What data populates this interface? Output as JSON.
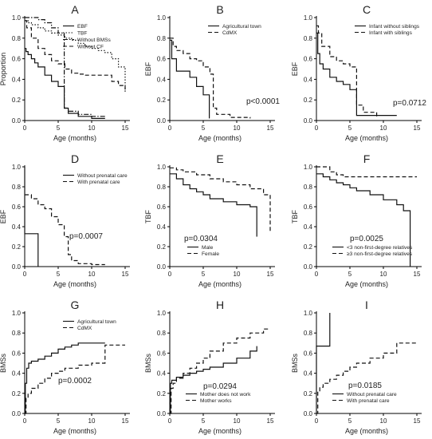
{
  "chart_data": [
    {
      "type": "line",
      "panel": "A",
      "xlabel": "Age (months)",
      "ylabel": "Proportion",
      "xlim": [
        0,
        15
      ],
      "ylim": [
        0,
        1.0
      ],
      "xticks": [
        0,
        5,
        10,
        15
      ],
      "yticks": [
        0,
        0.2,
        0.4,
        0.6,
        0.8,
        1.0
      ],
      "legend": "top-right",
      "pvalue": "",
      "series": [
        {
          "name": "EBF",
          "style": "solid",
          "x": [
            0,
            0.2,
            0.5,
            1,
            1.5,
            2,
            3,
            4,
            5,
            5.9,
            5.9,
            6.5,
            8,
            10,
            12
          ],
          "y": [
            0.7,
            0.67,
            0.64,
            0.6,
            0.56,
            0.52,
            0.44,
            0.38,
            0.33,
            0.3,
            0.12,
            0.07,
            0.04,
            0.02,
            0.02
          ]
        },
        {
          "name": "TBF",
          "style": "dotted",
          "x": [
            0,
            0.5,
            1,
            2,
            3,
            4,
            5,
            6,
            7,
            8,
            9,
            10,
            11,
            12,
            13,
            14,
            15
          ],
          "y": [
            0.97,
            0.95,
            0.93,
            0.9,
            0.87,
            0.85,
            0.83,
            0.8,
            0.78,
            0.75,
            0.72,
            0.7,
            0.68,
            0.66,
            0.6,
            0.52,
            0.28
          ]
        },
        {
          "name": "Without BMSs",
          "style": "dashdot",
          "x": [
            0,
            1,
            2,
            3,
            4,
            5,
            5.9,
            5.9,
            6.5,
            8,
            10,
            12
          ],
          "y": [
            1.0,
            1.0,
            0.98,
            0.95,
            0.9,
            0.85,
            0.8,
            0.12,
            0.09,
            0.06,
            0.04,
            0.03
          ]
        },
        {
          "name": "Without CF",
          "style": "dashed",
          "x": [
            0,
            0.3,
            1,
            2,
            3,
            4,
            5,
            6,
            7,
            8,
            9,
            10,
            12,
            13,
            14,
            15
          ],
          "y": [
            0.97,
            0.9,
            0.8,
            0.7,
            0.64,
            0.58,
            0.55,
            0.5,
            0.46,
            0.45,
            0.44,
            0.44,
            0.44,
            0.38,
            0.34,
            0.3
          ]
        }
      ]
    },
    {
      "type": "line",
      "panel": "B",
      "xlabel": "Age (months)",
      "ylabel": "EBF",
      "xlim": [
        0,
        15
      ],
      "ylim": [
        0,
        1.0
      ],
      "xticks": [
        0,
        5,
        10,
        15
      ],
      "yticks": [
        0,
        0.2,
        0.4,
        0.6,
        0.8,
        1.0
      ],
      "legend": "top-right",
      "pvalue": "p<0.0001",
      "series": [
        {
          "name": "Agricultural town",
          "style": "solid",
          "x": [
            0,
            0.3,
            1,
            2,
            3,
            4,
            5,
            5.9,
            5.9
          ],
          "y": [
            0.78,
            0.6,
            0.48,
            0.48,
            0.42,
            0.33,
            0.25,
            0.18,
            0.02
          ]
        },
        {
          "name": "CdMX",
          "style": "dashed",
          "x": [
            0,
            0.5,
            1,
            2,
            3,
            4,
            5,
            6,
            6.5,
            7,
            9,
            12
          ],
          "y": [
            0.8,
            0.72,
            0.68,
            0.65,
            0.6,
            0.58,
            0.52,
            0.45,
            0.12,
            0.06,
            0.03,
            0.02
          ]
        }
      ]
    },
    {
      "type": "line",
      "panel": "C",
      "xlabel": "Age (months)",
      "ylabel": "EBF",
      "xlim": [
        0,
        15
      ],
      "ylim": [
        0,
        1.0
      ],
      "xticks": [
        0,
        5,
        10,
        15
      ],
      "yticks": [
        0,
        0.2,
        0.4,
        0.6,
        0.8,
        1.0
      ],
      "legend": "top-right",
      "pvalue": "p=0.0712",
      "series": [
        {
          "name": "Infant without siblings",
          "style": "solid",
          "x": [
            0,
            0.2,
            0.5,
            1,
            2,
            3,
            4,
            5,
            6,
            6,
            7,
            12
          ],
          "y": [
            0.85,
            0.65,
            0.55,
            0.5,
            0.42,
            0.38,
            0.35,
            0.3,
            0.25,
            0.05,
            0.05,
            0.05
          ]
        },
        {
          "name": "Infant with siblings",
          "style": "dashed",
          "x": [
            0,
            0.3,
            0.8,
            2,
            3,
            4,
            5,
            6,
            6,
            7,
            9
          ],
          "y": [
            0.92,
            0.85,
            0.72,
            0.62,
            0.58,
            0.55,
            0.52,
            0.5,
            0.15,
            0.08,
            0.02
          ]
        }
      ]
    },
    {
      "type": "line",
      "panel": "D",
      "xlabel": "Age (months)",
      "ylabel": "EBF",
      "xlim": [
        0,
        15
      ],
      "ylim": [
        0,
        1.0
      ],
      "xticks": [
        0,
        5,
        10,
        15
      ],
      "yticks": [
        0,
        0.2,
        0.4,
        0.6,
        0.8,
        1.0
      ],
      "legend": "top-right",
      "pvalue": "p=0.0007",
      "series": [
        {
          "name": "Without prenatal care",
          "style": "solid",
          "x": [
            0,
            0,
            2,
            2
          ],
          "y": [
            1.0,
            0.33,
            0.33,
            0.0
          ]
        },
        {
          "name": "With prenatal care",
          "style": "dashed",
          "x": [
            0,
            1,
            2,
            3,
            4,
            5,
            5.9,
            6.5,
            7,
            8,
            10,
            12
          ],
          "y": [
            0.72,
            0.68,
            0.62,
            0.58,
            0.5,
            0.42,
            0.3,
            0.12,
            0.06,
            0.03,
            0.02,
            0.02
          ]
        }
      ]
    },
    {
      "type": "line",
      "panel": "E",
      "xlabel": "Age (months)",
      "ylabel": "TBF",
      "xlim": [
        0,
        15
      ],
      "ylim": [
        0,
        1.0
      ],
      "xticks": [
        0,
        5,
        10,
        15
      ],
      "yticks": [
        0,
        0.2,
        0.4,
        0.6,
        0.8,
        1.0
      ],
      "legend": "bottom-left",
      "pvalue": "p=0.0304",
      "series": [
        {
          "name": "Male",
          "style": "solid",
          "x": [
            0,
            1,
            2,
            3,
            4,
            5,
            6,
            8,
            10,
            12,
            13,
            13
          ],
          "y": [
            0.93,
            0.88,
            0.82,
            0.78,
            0.75,
            0.72,
            0.68,
            0.65,
            0.62,
            0.6,
            0.6,
            0.3
          ]
        },
        {
          "name": "Female",
          "style": "dashed",
          "x": [
            0,
            1,
            2,
            4,
            6,
            8,
            10,
            12,
            14,
            15,
            15
          ],
          "y": [
            0.99,
            0.97,
            0.95,
            0.92,
            0.88,
            0.85,
            0.82,
            0.78,
            0.72,
            0.6,
            0.35
          ]
        }
      ]
    },
    {
      "type": "line",
      "panel": "F",
      "xlabel": "Age (months)",
      "ylabel": "TBF",
      "xlim": [
        0,
        15
      ],
      "ylim": [
        0,
        1.0
      ],
      "xticks": [
        0,
        5,
        10,
        15
      ],
      "yticks": [
        0,
        0.2,
        0.4,
        0.6,
        0.8,
        1.0
      ],
      "legend": "bottom-right",
      "pvalue": "p=0.0025",
      "series": [
        {
          "name": "<3 non-first-degree relatives",
          "style": "solid",
          "x": [
            0,
            1,
            2,
            3,
            4,
            5,
            6,
            8,
            10,
            12,
            13,
            14,
            14
          ],
          "y": [
            0.93,
            0.9,
            0.87,
            0.84,
            0.82,
            0.79,
            0.76,
            0.72,
            0.67,
            0.62,
            0.56,
            0.45,
            0.0
          ]
        },
        {
          "name": "≥3 non-first-degree relatives",
          "style": "dashed",
          "x": [
            0,
            1,
            2,
            3,
            4,
            5,
            15
          ],
          "y": [
            1.0,
            1.0,
            0.95,
            0.92,
            0.9,
            0.9,
            0.9
          ]
        }
      ]
    },
    {
      "type": "line",
      "panel": "G",
      "xlabel": "Age (months)",
      "ylabel": "BMSs",
      "xlim": [
        0,
        15
      ],
      "ylim": [
        0,
        1.0
      ],
      "xticks": [
        0,
        5,
        10,
        15
      ],
      "yticks": [
        0,
        0.2,
        0.4,
        0.6,
        0.8,
        1.0
      ],
      "legend": "top-right",
      "pvalue": "p=0.0002",
      "series": [
        {
          "name": "Agricultural town",
          "style": "solid",
          "x": [
            0,
            0.1,
            0.3,
            0.6,
            1,
            2,
            3,
            4,
            5,
            6,
            7,
            8,
            10,
            12
          ],
          "y": [
            0.0,
            0.3,
            0.45,
            0.5,
            0.52,
            0.54,
            0.57,
            0.6,
            0.64,
            0.66,
            0.68,
            0.7,
            0.7,
            0.7
          ]
        },
        {
          "name": "CdMX",
          "style": "dashed",
          "x": [
            0,
            0.2,
            0.5,
            1,
            2,
            3,
            4,
            5,
            6,
            8,
            10,
            12,
            12,
            15
          ],
          "y": [
            0.0,
            0.15,
            0.2,
            0.25,
            0.3,
            0.35,
            0.4,
            0.42,
            0.45,
            0.48,
            0.5,
            0.55,
            0.68,
            0.68
          ]
        }
      ]
    },
    {
      "type": "line",
      "panel": "H",
      "xlabel": "Age (months)",
      "ylabel": "BMSs",
      "xlim": [
        0,
        15
      ],
      "ylim": [
        0,
        1.0
      ],
      "xticks": [
        0,
        5,
        10,
        15
      ],
      "yticks": [
        0,
        0.2,
        0.4,
        0.6,
        0.8,
        1.0
      ],
      "legend": "bottom-right",
      "pvalue": "p=0.0294",
      "series": [
        {
          "name": "Mother does not work",
          "style": "solid",
          "x": [
            0,
            0.1,
            0.3,
            1,
            2,
            3,
            4,
            5,
            6,
            8,
            10,
            12,
            13
          ],
          "y": [
            0.0,
            0.3,
            0.33,
            0.36,
            0.38,
            0.4,
            0.42,
            0.44,
            0.46,
            0.5,
            0.55,
            0.62,
            0.67
          ]
        },
        {
          "name": "Mother works",
          "style": "dashed",
          "x": [
            0,
            0.2,
            0.5,
            1,
            2,
            3,
            4,
            5,
            6,
            8,
            10,
            12,
            14,
            15
          ],
          "y": [
            0.0,
            0.25,
            0.3,
            0.35,
            0.4,
            0.45,
            0.5,
            0.55,
            0.62,
            0.7,
            0.75,
            0.8,
            0.84,
            0.84
          ]
        }
      ]
    },
    {
      "type": "line",
      "panel": "I",
      "xlabel": "Age (months)",
      "ylabel": "BMSs",
      "xlim": [
        0,
        15
      ],
      "ylim": [
        0,
        1.0
      ],
      "xticks": [
        0,
        5,
        10,
        15
      ],
      "yticks": [
        0,
        0.2,
        0.4,
        0.6,
        0.8,
        1.0
      ],
      "legend": "bottom-right",
      "pvalue": "p=0.0185",
      "series": [
        {
          "name": "Without prenatal care",
          "style": "solid",
          "x": [
            0,
            0,
            2,
            2
          ],
          "y": [
            0.0,
            0.67,
            0.67,
            1.0
          ]
        },
        {
          "name": "With prenatal care",
          "style": "dashed",
          "x": [
            0,
            0.2,
            0.5,
            1,
            2,
            3,
            4,
            5,
            6,
            8,
            10,
            12,
            15
          ],
          "y": [
            0.0,
            0.22,
            0.26,
            0.3,
            0.34,
            0.38,
            0.42,
            0.46,
            0.5,
            0.55,
            0.6,
            0.7,
            0.7
          ]
        }
      ]
    }
  ]
}
